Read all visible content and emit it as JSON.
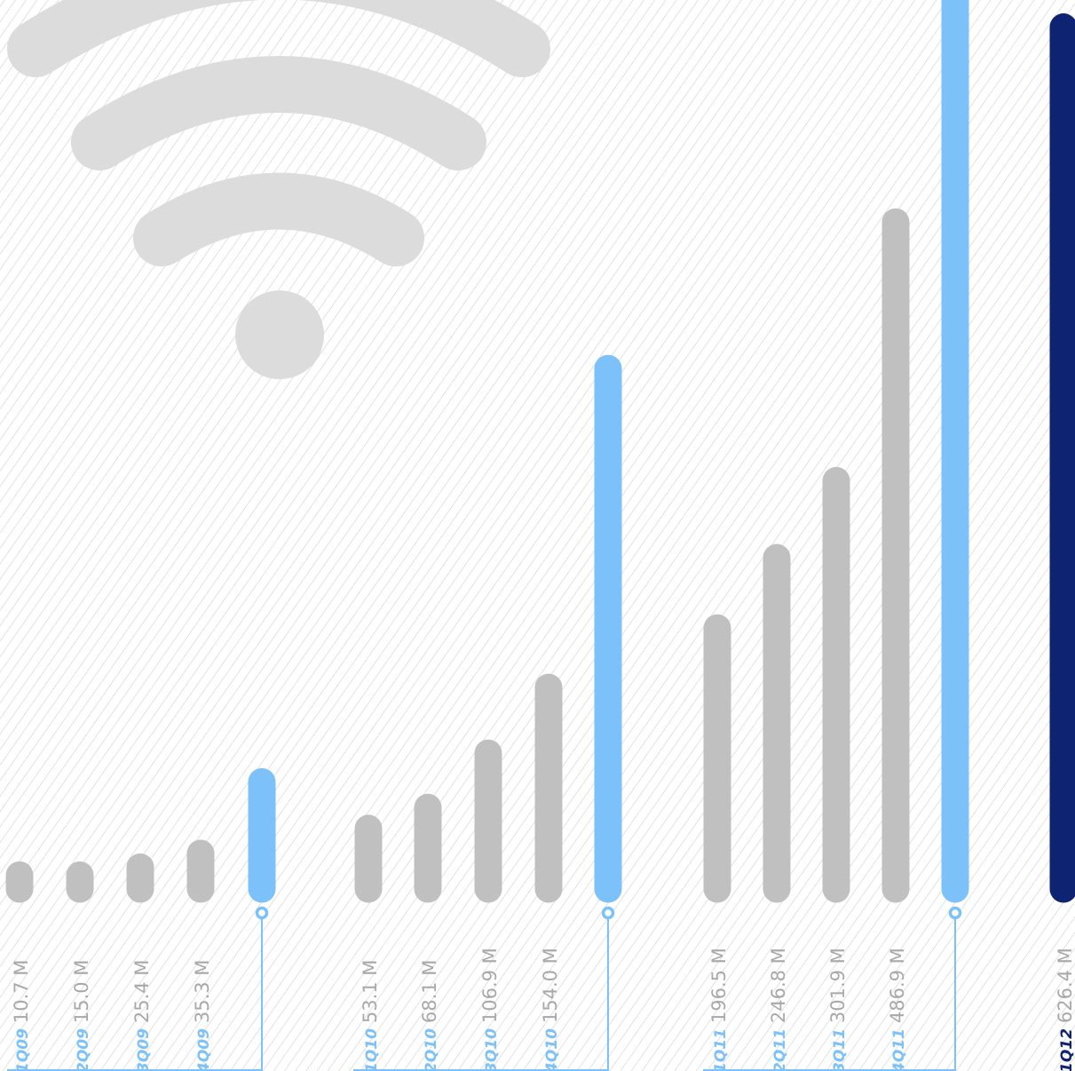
{
  "chart_data": {
    "type": "bar",
    "ylabel": "",
    "xlabel": "",
    "unit": "M",
    "ylim": [
      0,
      670
    ],
    "categories": [
      "1Q09",
      "2Q09",
      "3Q09",
      "4Q09",
      "1Q10",
      "2Q10",
      "3Q10",
      "4Q10",
      "1Q11",
      "2Q11",
      "3Q11",
      "4Q11",
      "1Q12"
    ],
    "values": [
      10.7,
      15.0,
      25.4,
      35.3,
      53.1,
      68.1,
      106.9,
      154.0,
      196.5,
      246.8,
      301.9,
      486.9,
      626.4
    ],
    "value_labels": [
      "10.7 M",
      "15.0 M",
      "25.4 M",
      "35.3 M",
      "53.1 M",
      "68.1 M",
      "106.9 M",
      "154.0 M",
      "196.5 M",
      "246.8 M",
      "301.9 M",
      "486.9 M",
      "626.4 M"
    ],
    "year_totals": [
      {
        "after": "4Q09",
        "value": 86.4
      },
      {
        "after": "4Q10",
        "value": 382.1
      },
      {
        "after": "4Q11",
        "value": 1232.1
      }
    ],
    "colors": {
      "quarter_bar": "#c0c0c0",
      "total_bar": "#7cc1f9",
      "highlight_bar": "#0e2372",
      "quarter_label": "#7cc1f9",
      "value_label": "#a8a8a8",
      "bracket": "#7cc1f9",
      "wifi_icon": "#dcdcdc"
    },
    "background_icon": "wifi-icon"
  }
}
